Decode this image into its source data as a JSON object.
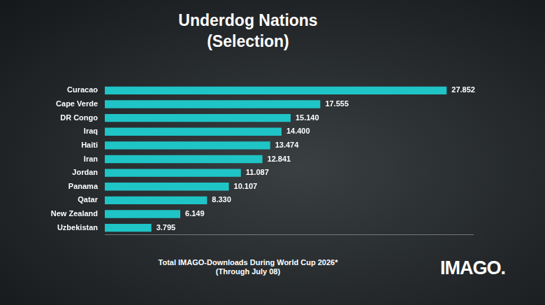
{
  "chart_data": {
    "type": "bar",
    "orientation": "horizontal",
    "title": "Underdog Nations",
    "subtitle": "(Selection)",
    "categories": [
      "Curacao",
      "Cape Verde",
      "DR Congo",
      "Iraq",
      "Haiti",
      "Iran",
      "Jordan",
      "Panama",
      "Qatar",
      "New Zealand",
      "Uzbekistan"
    ],
    "values": [
      27852,
      17555,
      15140,
      14400,
      13474,
      12841,
      11087,
      10107,
      8330,
      6149,
      3795
    ],
    "value_labels": [
      "27.852",
      "17.555",
      "15.140",
      "14.400",
      "13.474",
      "12.841",
      "11.087",
      "10.107",
      "8.330",
      "6.149",
      "3.795"
    ],
    "color": "#1fc4c6",
    "xlim": [
      0,
      30000
    ],
    "grid": false,
    "data_labels": true,
    "tick_labels": "y",
    "annotations": [
      "Total IMAGO-Downloads During World Cup 2026*",
      "(Through July 08)",
      "IMAGO."
    ]
  }
}
